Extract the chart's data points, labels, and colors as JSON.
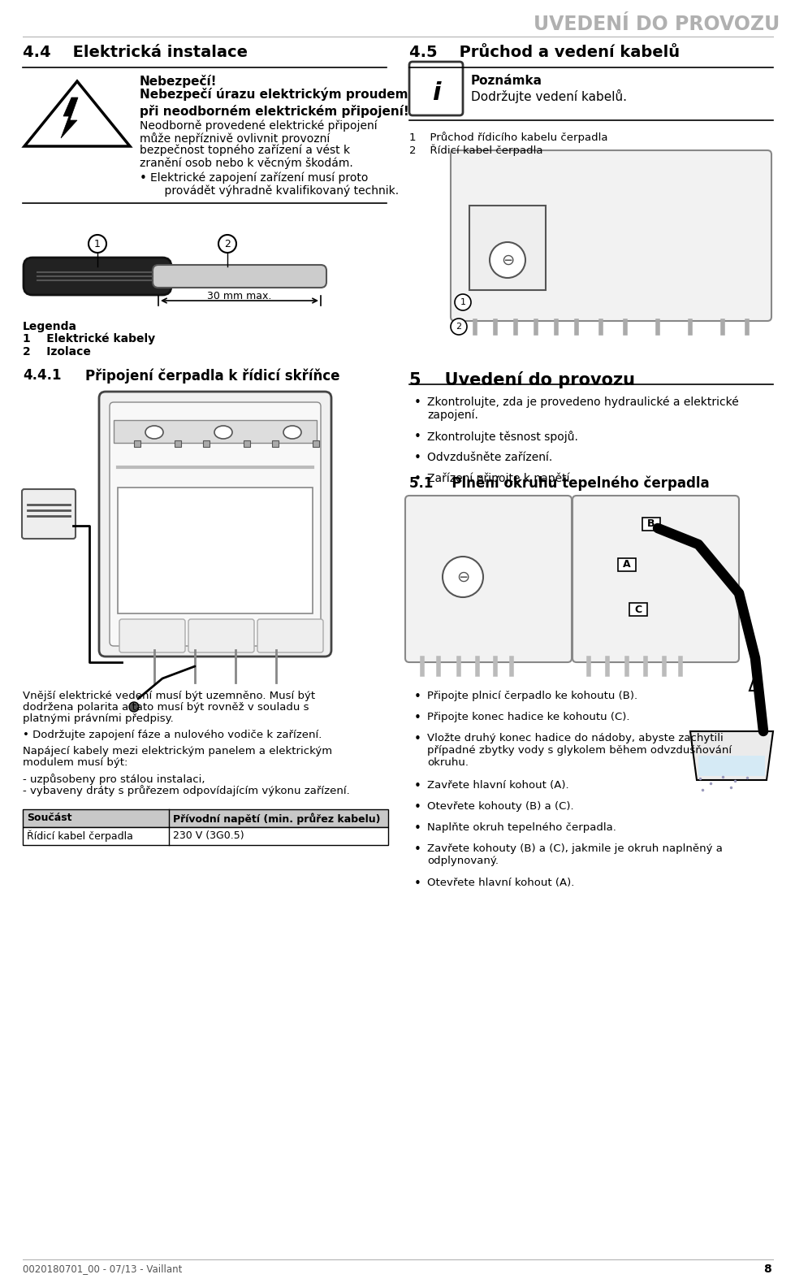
{
  "page_bg": "#ffffff",
  "header_text": "UVEDENÍ DO PROVOZU",
  "header_color": "#b0b0b0",
  "page_number": "8",
  "footer_text": "0020180701_00 - 07/13 - Vaillant",
  "sec44_title": "4.4    Elektrická instalace",
  "sec45_title": "4.5    Průchod a vedení kabelů",
  "danger_title": "Nebezpečí!",
  "danger_bold": "Nebezpečí úrazu elektrickým proudem\npři neodborném elektrickém připojení!",
  "danger_text1": "Neodborně provedené elektrické připojení",
  "danger_text2": "může nepříznivě ovlivnit provozní",
  "danger_text3": "bezpečnost topného zařízení a vést k",
  "danger_text4": "zranění osob nebo k věcným škodám.",
  "danger_bullet1": "Elektrické zapojení zařízení musí proto",
  "danger_bullet2": "    provádět výhradně kvalifikovaný technik.",
  "note_title": "Poznámka",
  "note_text": "Dodržujte vedení kabelů.",
  "legend_title": "Legenda",
  "legend_1a": "1    Elektrické kabely",
  "legend_2a": "2    Izolace",
  "dim_text": "30 mm max.",
  "label1_right": "1    Průchod řídicího kabelu čerpadla",
  "label2_right": "2    Řídicí kabel čerpadla",
  "sec441_title": "4.4.1",
  "sec441_text": "Připojení čerpadla k řídicí skříňce",
  "sec5_title": "5    Uvedení do provozu",
  "sec5_b1a": "Zkontrolujte, zda je provedeno hydraulické a elektrické",
  "sec5_b1b": "zapojení.",
  "sec5_b2": "Zkontrolujte těsnost spojů.",
  "sec5_b3": "Odvzdušněte zařízení.",
  "sec5_b4": "Zařízení připojte k napětí.",
  "sec51_title": "5.1    Plnění okruhu tepelného čerpadla",
  "btl1a": "Vnější elektrické vedení musí být uzemněno. Musí být",
  "btl1b": "dodržena polarita a tato musí být rovněž v souladu s",
  "btl1c": "platnými právními předpisy.",
  "btl2": "• Dodržujte zapojení fáze a nulového vodiče k zařízení.",
  "btl3a": "Napájecí kabely mezi elektrickým panelem a elektrickým",
  "btl3b": "modulem musí být:",
  "btl4": "- uzpůsobeny pro stálou instalaci,",
  "btl5": "- vybaveny dráty s průřezem odpovídajícím výkonu zařízení.",
  "table_h1": "Součást",
  "table_h2": "Přívodní napětí (min. průřez kabelu)",
  "table_d1": "Řídicí kabel čerpadla",
  "table_d2": "230 V (3G0.5)",
  "btr1": "Připojte plnicí čerpadlo ke kohoutu (B).",
  "btr2": "Připojte konec hadice ke kohoutu (C).",
  "btr3a": "Vložte druhý konec hadice do nádoby, abyste zachytili",
  "btr3b": "případné zbytky vody s glykolem během odvzdušňování",
  "btr3c": "okruhu.",
  "btr4": "Zavřete hlavní kohout (A).",
  "btr5": "Otevřete kohouty (B) a (C).",
  "btr6": "Naplňte okruh tepelného čerpadla.",
  "btr7a": "Zavřete kohouty (B) a (C), jakmile je okruh naplněný a",
  "btr7b": "odplynovaný.",
  "btr8": "Otevřete hlavní kohout (A)."
}
